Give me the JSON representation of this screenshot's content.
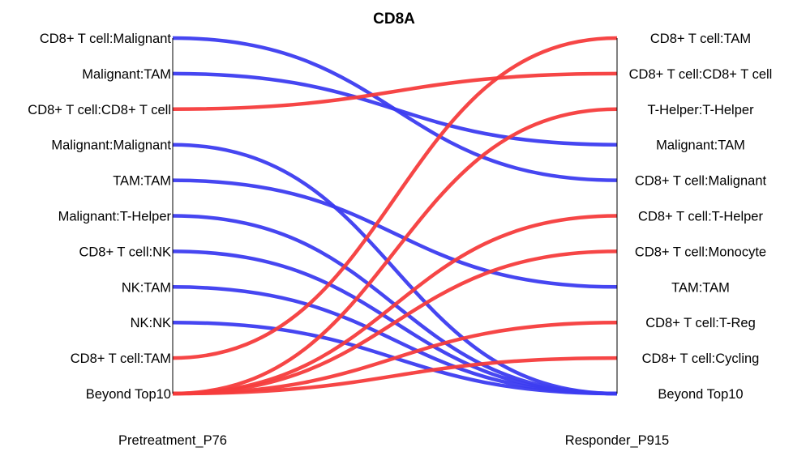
{
  "chart_data": {
    "type": "slope",
    "title": "CD8A",
    "left_axis": {
      "label": "Pretreatment_P76",
      "ranks": [
        "CD8+ T cell:Malignant",
        "Malignant:TAM",
        "CD8+ T cell:CD8+ T cell",
        "Malignant:Malignant",
        "TAM:TAM",
        "Malignant:T-Helper",
        "CD8+ T cell:NK",
        "NK:TAM",
        "NK:NK",
        "CD8+ T cell:TAM",
        "Beyond Top10"
      ]
    },
    "right_axis": {
      "label": "Responder_P915",
      "ranks": [
        "CD8+ T cell:TAM",
        "CD8+ T cell:CD8+ T cell",
        "T-Helper:T-Helper",
        "Malignant:TAM",
        "CD8+ T cell:Malignant",
        "CD8+ T cell:T-Helper",
        "CD8+ T cell:Monocyte",
        "TAM:TAM",
        "CD8+ T cell:T-Reg",
        "CD8+ T cell:Cycling",
        "Beyond Top10"
      ]
    },
    "colors": {
      "decrease": "#3c3cf0",
      "increase": "#f53c3c",
      "axis": "#000000"
    },
    "links": [
      {
        "name": "CD8+ T cell:Malignant",
        "from_rank": 1,
        "to_rank": 5,
        "direction": "decrease"
      },
      {
        "name": "Malignant:TAM",
        "from_rank": 2,
        "to_rank": 4,
        "direction": "decrease"
      },
      {
        "name": "CD8+ T cell:CD8+ T cell",
        "from_rank": 3,
        "to_rank": 2,
        "direction": "increase"
      },
      {
        "name": "Malignant:Malignant",
        "from_rank": 4,
        "to_rank": 11,
        "direction": "decrease"
      },
      {
        "name": "TAM:TAM",
        "from_rank": 5,
        "to_rank": 8,
        "direction": "decrease"
      },
      {
        "name": "Malignant:T-Helper",
        "from_rank": 6,
        "to_rank": 11,
        "direction": "decrease"
      },
      {
        "name": "CD8+ T cell:NK",
        "from_rank": 7,
        "to_rank": 11,
        "direction": "decrease"
      },
      {
        "name": "NK:TAM",
        "from_rank": 8,
        "to_rank": 11,
        "direction": "decrease"
      },
      {
        "name": "NK:NK",
        "from_rank": 9,
        "to_rank": 11,
        "direction": "decrease"
      },
      {
        "name": "CD8+ T cell:TAM",
        "from_rank": 10,
        "to_rank": 1,
        "direction": "increase"
      },
      {
        "name": "T-Helper:T-Helper",
        "from_rank": 11,
        "to_rank": 3,
        "direction": "increase"
      },
      {
        "name": "CD8+ T cell:T-Helper",
        "from_rank": 11,
        "to_rank": 6,
        "direction": "increase"
      },
      {
        "name": "CD8+ T cell:Monocyte",
        "from_rank": 11,
        "to_rank": 7,
        "direction": "increase"
      },
      {
        "name": "CD8+ T cell:T-Reg",
        "from_rank": 11,
        "to_rank": 9,
        "direction": "increase"
      },
      {
        "name": "CD8+ T cell:Cycling",
        "from_rank": 11,
        "to_rank": 10,
        "direction": "increase"
      }
    ]
  }
}
